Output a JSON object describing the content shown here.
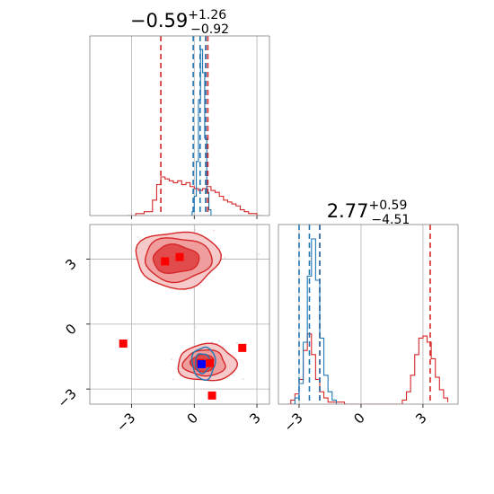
{
  "chart_data": [
    {
      "type": "line",
      "panel": "marginal-1",
      "title": {
        "value": "−0.59",
        "sup": "+1.26",
        "sub": "−0.92"
      },
      "xlim": [
        -5.0,
        3.6
      ],
      "grid": true,
      "colors": {
        "red": "#d62728",
        "blue": "#1f77b4"
      },
      "series": [
        {
          "color": "red",
          "step": true,
          "x": [
            -3.2,
            -2.8,
            -2.4,
            -2.0,
            -1.8,
            -1.6,
            -1.4,
            -1.2,
            -1.0,
            -0.8,
            -0.6,
            -0.4,
            -0.2,
            0.0,
            0.2,
            0.4,
            0.6,
            0.8,
            1.0,
            1.2,
            1.4,
            1.6,
            1.8,
            2.0,
            2.2,
            2.4,
            2.6,
            2.8,
            3.0,
            3.2
          ],
          "y": [
            0,
            0.01,
            0.02,
            0.08,
            0.16,
            0.2,
            0.19,
            0.18,
            0.17,
            0.18,
            0.16,
            0.17,
            0.15,
            0.14,
            0.13,
            0.14,
            0.15,
            0.13,
            0.12,
            0.1,
            0.08,
            0.07,
            0.06,
            0.05,
            0.03,
            0.02,
            0.01,
            0.01,
            0,
            0
          ]
        },
        {
          "color": "blue",
          "step": true,
          "x": [
            -0.2,
            -0.1,
            0.0,
            0.1,
            0.2,
            0.3,
            0.4,
            0.5,
            0.6,
            0.7,
            0.8
          ],
          "y": [
            0,
            0.02,
            0.1,
            0.28,
            0.6,
            0.86,
            0.74,
            0.4,
            0.12,
            0.03,
            0
          ]
        }
      ],
      "vlines": [
        {
          "x": -1.6,
          "color": "red"
        },
        {
          "x": 0.55,
          "color": "red"
        },
        {
          "x": 0.65,
          "color": "red"
        },
        {
          "x": -0.05,
          "color": "blue"
        },
        {
          "x": 0.28,
          "color": "blue"
        },
        {
          "x": 0.55,
          "color": "blue"
        }
      ]
    },
    {
      "type": "line",
      "panel": "marginal-2",
      "title": {
        "value": "2.77",
        "sup": "+0.59",
        "sub": "−4.51"
      },
      "xlim": [
        -4.0,
        4.7
      ],
      "xticks": [
        -3,
        0,
        3
      ],
      "xticklabels": [
        "−3",
        "0",
        "3"
      ],
      "grid": true,
      "series": [
        {
          "color": "red",
          "step": true,
          "x": [
            -3.6,
            -3.4,
            -3.2,
            -3.0,
            -2.8,
            -2.6,
            -2.4,
            -2.2,
            -2.0,
            -1.8,
            -1.6,
            -1.4,
            -1.2,
            -1.0,
            -0.8,
            -0.6,
            0.0,
            1.0,
            2.0,
            2.2,
            2.4,
            2.6,
            2.8,
            3.0,
            3.2,
            3.4,
            3.6,
            3.8,
            4.0,
            4.2
          ],
          "y": [
            0,
            0.02,
            0.05,
            0.12,
            0.26,
            0.34,
            0.24,
            0.12,
            0.06,
            0.03,
            0.01,
            0.01,
            0.01,
            0.01,
            0,
            0,
            0,
            0,
            0.02,
            0.06,
            0.14,
            0.24,
            0.32,
            0.33,
            0.3,
            0.22,
            0.13,
            0.07,
            0.03,
            0.01
          ]
        },
        {
          "color": "blue",
          "step": true,
          "x": [
            -3.4,
            -3.2,
            -3.0,
            -2.8,
            -2.6,
            -2.4,
            -2.2,
            -2.0,
            -1.8,
            -1.6,
            -1.4,
            -1.2
          ],
          "y": [
            0,
            0.03,
            0.1,
            0.3,
            0.62,
            0.8,
            0.6,
            0.32,
            0.14,
            0.06,
            0.02,
            0
          ]
        }
      ],
      "vlines": [
        {
          "x": -2.0,
          "color": "red"
        },
        {
          "x": 3.35,
          "color": "red"
        },
        {
          "x": -2.5,
          "color": "blue"
        },
        {
          "x": -3.0,
          "color": "blue"
        },
        {
          "x": -2.0,
          "color": "blue"
        }
      ]
    },
    {
      "type": "scatter",
      "panel": "joint",
      "xlim": [
        -5.0,
        3.6
      ],
      "ylim": [
        -3.7,
        4.6
      ],
      "xticks": [
        -3,
        0,
        3
      ],
      "xticklabels": [
        "−3",
        "0",
        "3"
      ],
      "yticks": [
        -3,
        0,
        3
      ],
      "yticklabels": [
        "−3",
        "0",
        "3"
      ],
      "grid": true,
      "contours": [
        {
          "cx": -0.8,
          "cy": 3.0,
          "rx": 2.0,
          "ry": 1.3,
          "fill": "#f6c7c7",
          "stroke": "#d62728"
        },
        {
          "cx": -0.8,
          "cy": 3.0,
          "rx": 1.6,
          "ry": 1.0,
          "fill": "#ee9a9a",
          "stroke": "#d62728"
        },
        {
          "cx": -0.9,
          "cy": 3.0,
          "rx": 1.1,
          "ry": 0.65,
          "fill": "#e04747",
          "stroke": "#d62728"
        },
        {
          "cx": 0.6,
          "cy": -1.8,
          "rx": 1.4,
          "ry": 0.85,
          "fill": "#f6c7c7",
          "stroke": "#d62728"
        },
        {
          "cx": 0.5,
          "cy": -1.8,
          "rx": 1.0,
          "ry": 0.6,
          "fill": "#ee9a9a",
          "stroke": "#d62728"
        },
        {
          "cx": 0.4,
          "cy": -1.8,
          "rx": 0.55,
          "ry": 0.4,
          "fill": "#e04747",
          "stroke": "#d62728"
        },
        {
          "cx": 0.45,
          "cy": -1.8,
          "rx": 0.55,
          "ry": 0.75,
          "fill": "none",
          "stroke": "#1f77b4"
        },
        {
          "cx": 0.4,
          "cy": -1.8,
          "rx": 0.35,
          "ry": 0.45,
          "fill": "none",
          "stroke": "#1f77b4"
        }
      ],
      "red_markers": [
        {
          "x": -1.4,
          "y": 2.9
        },
        {
          "x": -0.7,
          "y": 3.1
        },
        {
          "x": -3.4,
          "y": -0.9
        },
        {
          "x": 0.3,
          "y": -1.8
        },
        {
          "x": 0.75,
          "y": -1.8
        },
        {
          "x": 2.3,
          "y": -1.1
        },
        {
          "x": 0.85,
          "y": -3.3
        }
      ],
      "blue_markers": [
        {
          "x": 0.35,
          "y": -1.85
        }
      ]
    }
  ]
}
